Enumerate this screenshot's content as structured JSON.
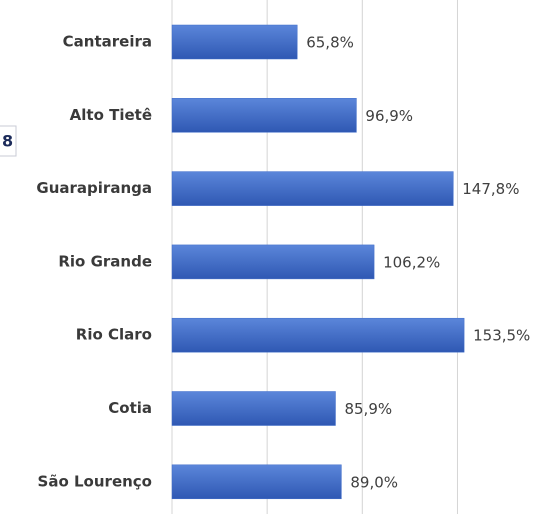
{
  "chart_data": {
    "type": "hbar",
    "annotation": "8",
    "categories": [
      "Cantareira",
      "Alto Tietê",
      "Guarapiranga",
      "Rio Grande",
      "Rio Claro",
      "Cotia",
      "São Lourenço"
    ],
    "values": [
      65.8,
      96.9,
      147.8,
      106.2,
      153.5,
      85.9,
      89.0
    ],
    "value_labels": [
      "65,8%",
      "96,9%",
      "147,8%",
      "106,2%",
      "153,5%",
      "85,9%",
      "89,0%"
    ],
    "color": "#3f6cc9",
    "xlim": [
      0,
      196
    ],
    "xticks": [
      0,
      50,
      100,
      150
    ],
    "grid": true
  }
}
